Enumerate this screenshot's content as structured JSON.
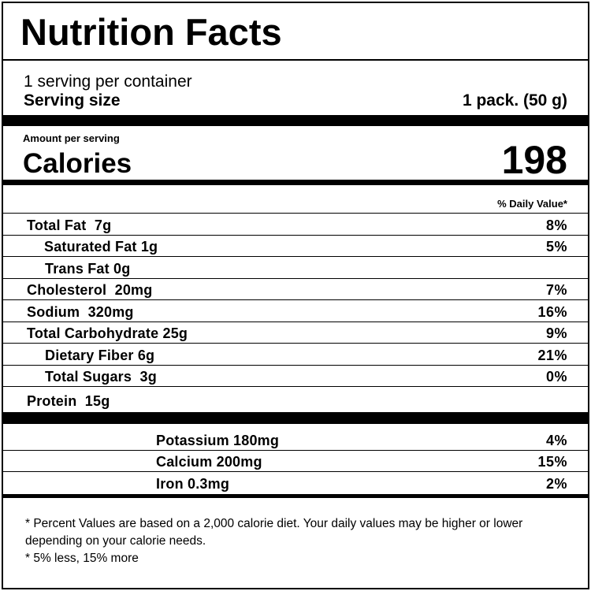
{
  "title": "Nutrition Facts",
  "servings_per_container": "1 serving per container",
  "serving_size": {
    "label": "Serving size",
    "value": "1 pack. (50 g)"
  },
  "amount_per_serving": "Amount per serving",
  "calories": {
    "label": "Calories",
    "value": "198"
  },
  "daily_value_header": "% Daily Value*",
  "nutrients": [
    {
      "name": "Total Fat  7g",
      "dv": "8%"
    },
    {
      "name": "Saturated Fat 1g",
      "dv": "5%"
    },
    {
      "name": "Trans Fat 0g",
      "dv": ""
    },
    {
      "name": "Cholesterol  20mg",
      "dv": "7%"
    },
    {
      "name": "Sodium  320mg",
      "dv": "16%"
    },
    {
      "name": "Total Carbohydrate 25g",
      "dv": "9%"
    },
    {
      "name": "Dietary Fiber 6g",
      "dv": "21%"
    },
    {
      "name": "Total Sugars  3g",
      "dv": "0%"
    },
    {
      "name": "Protein  15g",
      "dv": ""
    }
  ],
  "minerals": [
    {
      "name": "Potassium 180mg",
      "dv": "4%"
    },
    {
      "name": "Calcium 200mg",
      "dv": "15%"
    },
    {
      "name": "Iron 0.3mg",
      "dv": "2%"
    }
  ],
  "footnotes": [
    "* Percent Values are based on a 2,000 calorie diet. Your daily values may be higher or lower depending on your calorie needs.",
    "* 5% less, 15% more"
  ]
}
